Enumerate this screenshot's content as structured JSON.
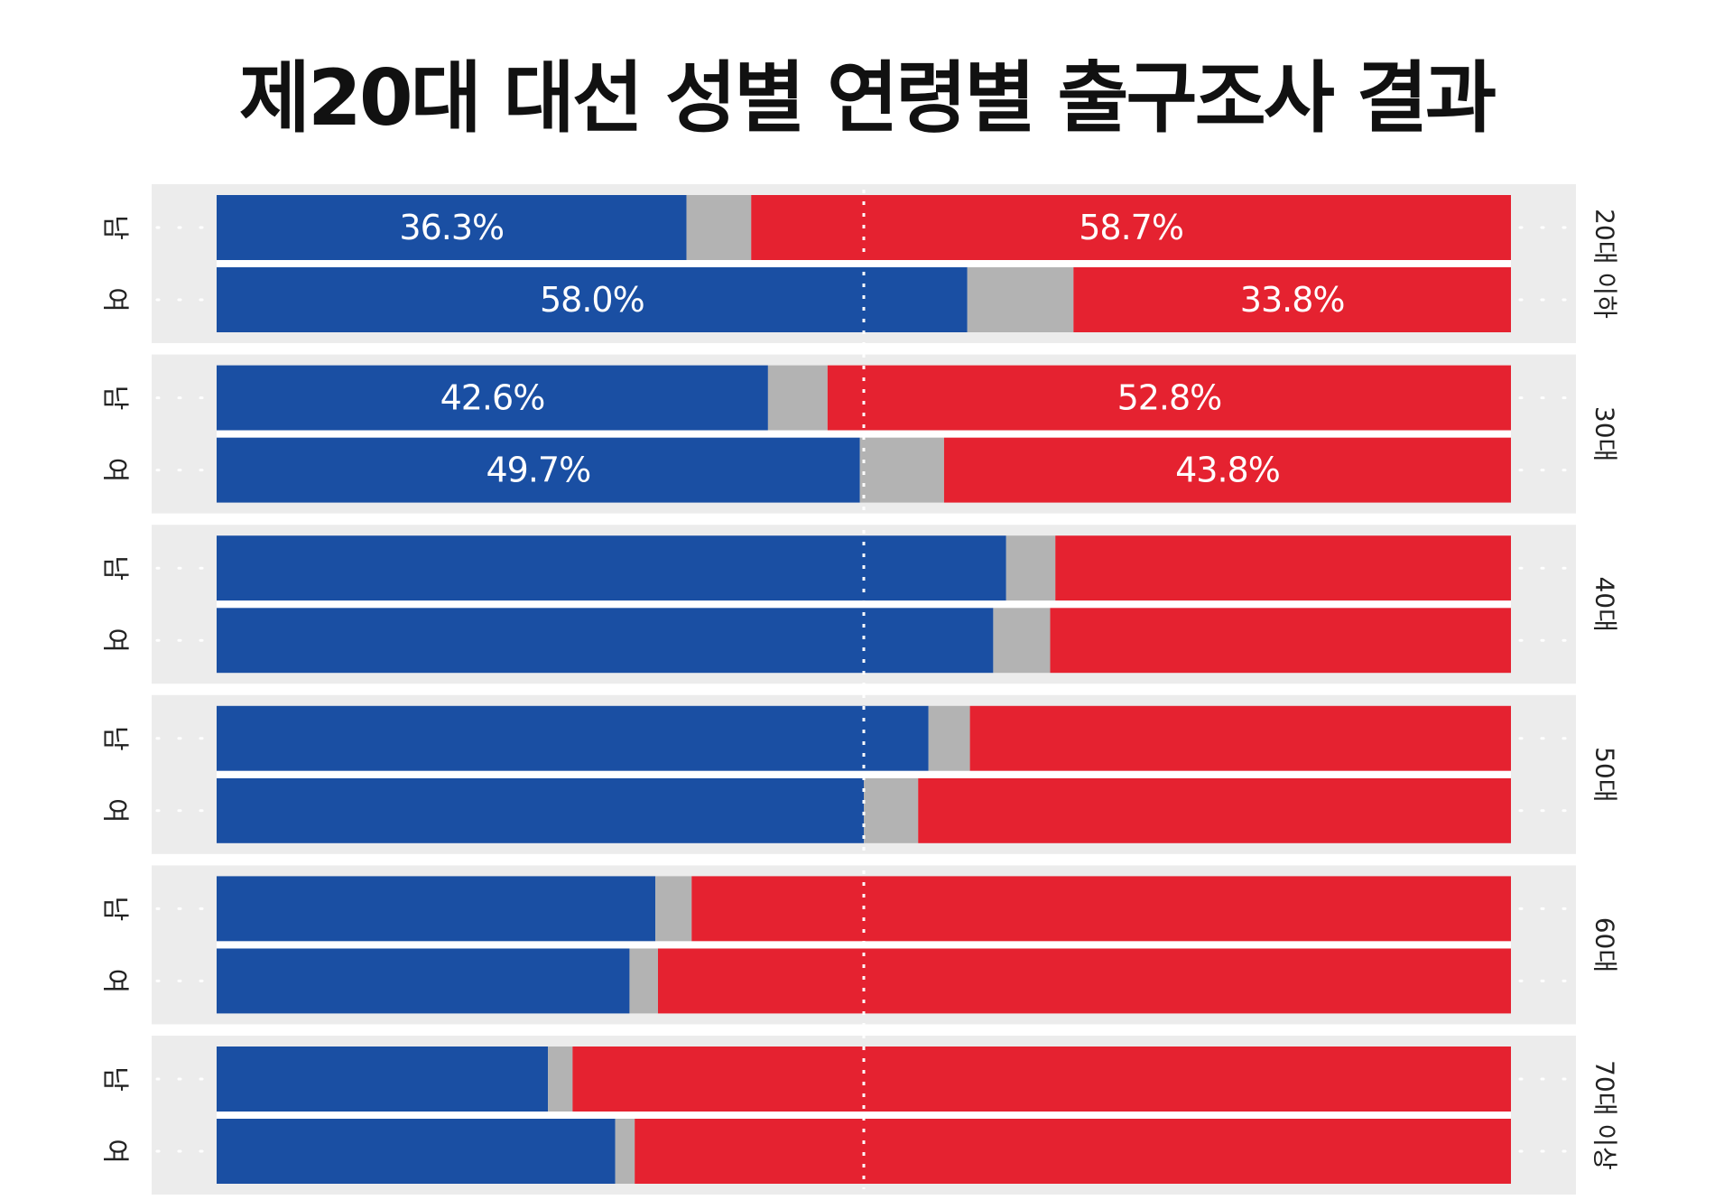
{
  "title": "제20대 대선 성별 연령별 출구조사 결과",
  "colors": {
    "left": "#1a4fa3",
    "other": "#b3b3b3",
    "right": "#e52230",
    "panel": "#ececec",
    "divider": "#ffffff"
  },
  "chart_data": {
    "type": "bar",
    "stacked": true,
    "orientation": "horizontal",
    "title": "제20대 대선 성별 연령별 출구조사 결과",
    "xlim": [
      0,
      100
    ],
    "midline": 50,
    "groups": [
      {
        "label": "20대 이하",
        "rows": [
          {
            "gender": "남",
            "left": 36.3,
            "right": 58.7,
            "left_label": "36.3%",
            "right_label": "58.7%"
          },
          {
            "gender": "여",
            "left": 58.0,
            "right": 33.8,
            "left_label": "58.0%",
            "right_label": "33.8%"
          }
        ]
      },
      {
        "label": "30대",
        "rows": [
          {
            "gender": "남",
            "left": 42.6,
            "right": 52.8,
            "left_label": "42.6%",
            "right_label": "52.8%"
          },
          {
            "gender": "여",
            "left": 49.7,
            "right": 43.8,
            "left_label": "49.7%",
            "right_label": "43.8%"
          }
        ]
      },
      {
        "label": "40대",
        "rows": [
          {
            "gender": "남",
            "left": 61.0,
            "right": 35.2,
            "left_label": "",
            "right_label": ""
          },
          {
            "gender": "여",
            "left": 60.0,
            "right": 35.6,
            "left_label": "",
            "right_label": ""
          }
        ]
      },
      {
        "label": "50대",
        "rows": [
          {
            "gender": "남",
            "left": 55.0,
            "right": 41.8,
            "left_label": "",
            "right_label": ""
          },
          {
            "gender": "여",
            "left": 50.0,
            "right": 45.8,
            "left_label": "",
            "right_label": ""
          }
        ]
      },
      {
        "label": "60대",
        "rows": [
          {
            "gender": "남",
            "left": 33.9,
            "right": 63.3,
            "left_label": "",
            "right_label": ""
          },
          {
            "gender": "여",
            "left": 31.9,
            "right": 65.9,
            "left_label": "",
            "right_label": ""
          }
        ]
      },
      {
        "label": "70대 이상",
        "rows": [
          {
            "gender": "남",
            "left": 25.6,
            "right": 72.5,
            "left_label": "",
            "right_label": ""
          },
          {
            "gender": "여",
            "left": 30.8,
            "right": 67.7,
            "left_label": "",
            "right_label": ""
          }
        ]
      }
    ]
  }
}
